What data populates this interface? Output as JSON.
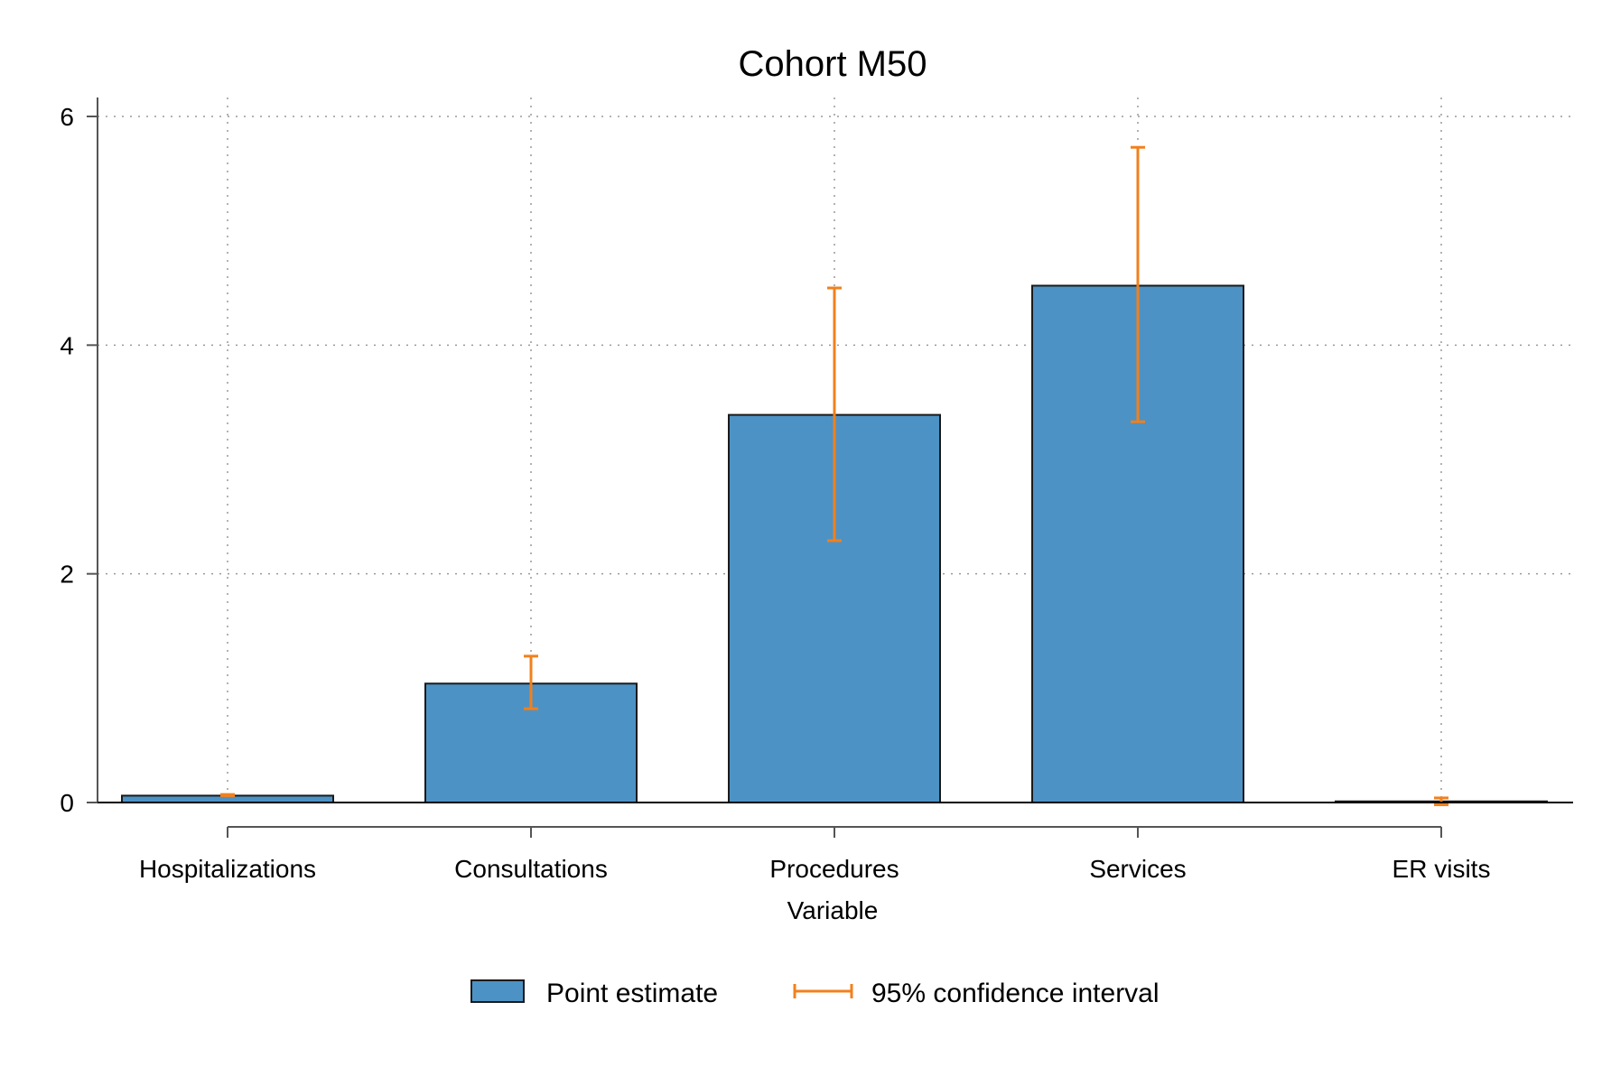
{
  "chart_data": {
    "type": "bar",
    "title": "Cohort M50",
    "xlabel": "Variable",
    "ylabel": "",
    "categories": [
      "Hospitalizations",
      "Consultations",
      "Procedures",
      "Services",
      "ER visits"
    ],
    "series": [
      {
        "name": "Point estimate",
        "values": [
          0.06,
          1.04,
          3.39,
          4.52,
          0.01
        ],
        "ci_low": [
          0.06,
          0.82,
          2.29,
          3.33,
          -0.02
        ],
        "ci_high": [
          0.07,
          1.28,
          4.5,
          5.73,
          0.04
        ]
      }
    ],
    "ci_label": "95% confidence interval",
    "ylim": [
      0,
      6
    ],
    "yticks": [
      0,
      2,
      4,
      6
    ],
    "grid": true,
    "legend_position": "bottom",
    "colors": {
      "bar": "#4d92c4",
      "ci": "#f2801c",
      "bar_edge": "#1a1a1a"
    }
  }
}
